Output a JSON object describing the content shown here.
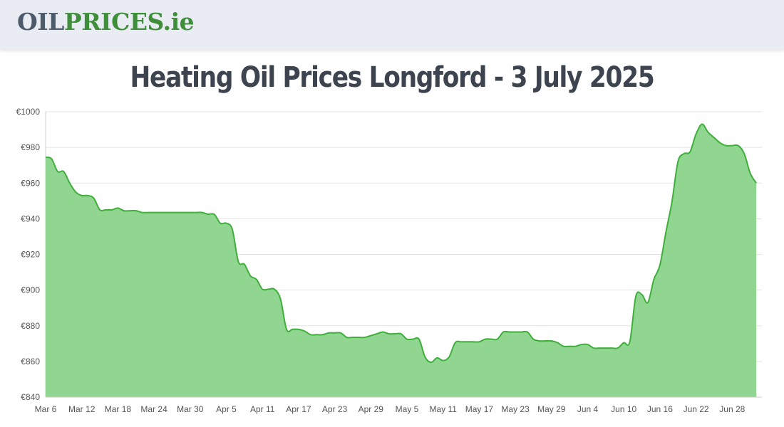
{
  "logo": {
    "part_a": "OIL",
    "part_b": "PRICES",
    "part_c": ".ie"
  },
  "title": "Heating Oil Prices Longford - 3 July 2025",
  "colors": {
    "line": "#3fae3b",
    "fill": "#90d690",
    "grid": "#e3e3e3",
    "header_bg": "#e9ecf3"
  },
  "chart_data": {
    "type": "area",
    "title": "Heating Oil Prices Longford - 3 July 2025",
    "xlabel": "",
    "ylabel": "",
    "ylim": [
      840,
      1000
    ],
    "y_ticks": [
      "€840",
      "€860",
      "€880",
      "€900",
      "€920",
      "€940",
      "€960",
      "€980",
      "€1000"
    ],
    "y_tick_values": [
      840,
      860,
      880,
      900,
      920,
      940,
      960,
      980,
      1000
    ],
    "x_ticks": [
      "Mar 6",
      "Mar 12",
      "Mar 18",
      "Mar 24",
      "Mar 30",
      "Apr 5",
      "Apr 11",
      "Apr 17",
      "Apr 23",
      "Apr 29",
      "May 5",
      "May 11",
      "May 17",
      "May 23",
      "May 29",
      "Jun 4",
      "Jun 10",
      "Jun 16",
      "Jun 22",
      "Jun 28"
    ],
    "x_start": "2025-03-06",
    "grid": true,
    "series": [
      {
        "points": [
          [
            "2025-03-06",
            974.5
          ],
          [
            "2025-03-07",
            973.5
          ],
          [
            "2025-03-08",
            966.5
          ],
          [
            "2025-03-09",
            966.5
          ],
          [
            "2025-03-10",
            960
          ],
          [
            "2025-03-11",
            955
          ],
          [
            "2025-03-12",
            953
          ],
          [
            "2025-03-13",
            953
          ],
          [
            "2025-03-14",
            951.5
          ],
          [
            "2025-03-15",
            945
          ],
          [
            "2025-03-16",
            945
          ],
          [
            "2025-03-17",
            945
          ],
          [
            "2025-03-18",
            946
          ],
          [
            "2025-03-19",
            944.5
          ],
          [
            "2025-03-20",
            944.5
          ],
          [
            "2025-03-21",
            944.5
          ],
          [
            "2025-03-22",
            943.5
          ],
          [
            "2025-03-23",
            943.5
          ],
          [
            "2025-03-24",
            943.5
          ],
          [
            "2025-03-25",
            943.5
          ],
          [
            "2025-03-26",
            943.5
          ],
          [
            "2025-03-27",
            943.5
          ],
          [
            "2025-03-28",
            943.5
          ],
          [
            "2025-03-29",
            943.5
          ],
          [
            "2025-03-30",
            943.5
          ],
          [
            "2025-03-31",
            943.5
          ],
          [
            "2025-04-01",
            943.5
          ],
          [
            "2025-04-02",
            942.5
          ],
          [
            "2025-04-03",
            942.5
          ],
          [
            "2025-04-04",
            937.5
          ],
          [
            "2025-04-05",
            937.5
          ],
          [
            "2025-04-06",
            934
          ],
          [
            "2025-04-07",
            916
          ],
          [
            "2025-04-08",
            914.5
          ],
          [
            "2025-04-09",
            908
          ],
          [
            "2025-04-10",
            906
          ],
          [
            "2025-04-11",
            900.5
          ],
          [
            "2025-04-12",
            900.5
          ],
          [
            "2025-04-13",
            900.5
          ],
          [
            "2025-04-14",
            895
          ],
          [
            "2025-04-15",
            878
          ],
          [
            "2025-04-16",
            878
          ],
          [
            "2025-04-17",
            878
          ],
          [
            "2025-04-18",
            877
          ],
          [
            "2025-04-19",
            875
          ],
          [
            "2025-04-20",
            875
          ],
          [
            "2025-04-21",
            875
          ],
          [
            "2025-04-22",
            876
          ],
          [
            "2025-04-23",
            876
          ],
          [
            "2025-04-24",
            876
          ],
          [
            "2025-04-25",
            873.5
          ],
          [
            "2025-04-26",
            873.5
          ],
          [
            "2025-04-27",
            873.5
          ],
          [
            "2025-04-28",
            873.5
          ],
          [
            "2025-04-29",
            874.5
          ],
          [
            "2025-04-30",
            875.5
          ],
          [
            "2025-05-01",
            876.5
          ],
          [
            "2025-05-02",
            875.5
          ],
          [
            "2025-05-03",
            875.5
          ],
          [
            "2025-05-04",
            875.5
          ],
          [
            "2025-05-05",
            872.5
          ],
          [
            "2025-05-06",
            872.5
          ],
          [
            "2025-05-07",
            872.5
          ],
          [
            "2025-05-08",
            862.5
          ],
          [
            "2025-05-09",
            859.5
          ],
          [
            "2025-05-10",
            862
          ],
          [
            "2025-05-11",
            860.5
          ],
          [
            "2025-05-12",
            862.5
          ],
          [
            "2025-05-13",
            870.5
          ],
          [
            "2025-05-14",
            871
          ],
          [
            "2025-05-15",
            871
          ],
          [
            "2025-05-16",
            871
          ],
          [
            "2025-05-17",
            871
          ],
          [
            "2025-05-18",
            872.5
          ],
          [
            "2025-05-19",
            872.5
          ],
          [
            "2025-05-20",
            872.5
          ],
          [
            "2025-05-21",
            876.5
          ],
          [
            "2025-05-22",
            876.5
          ],
          [
            "2025-05-23",
            876.5
          ],
          [
            "2025-05-24",
            876.5
          ],
          [
            "2025-05-25",
            876.5
          ],
          [
            "2025-05-26",
            872.5
          ],
          [
            "2025-05-27",
            871.5
          ],
          [
            "2025-05-28",
            871.5
          ],
          [
            "2025-05-29",
            871.5
          ],
          [
            "2025-05-30",
            870.5
          ],
          [
            "2025-05-31",
            868.5
          ],
          [
            "2025-06-01",
            868.5
          ],
          [
            "2025-06-02",
            868.5
          ],
          [
            "2025-06-03",
            869.5
          ],
          [
            "2025-06-04",
            869.5
          ],
          [
            "2025-06-05",
            867.5
          ],
          [
            "2025-06-06",
            867.5
          ],
          [
            "2025-06-07",
            867.5
          ],
          [
            "2025-06-08",
            867.5
          ],
          [
            "2025-06-09",
            867.5
          ],
          [
            "2025-06-10",
            870.5
          ],
          [
            "2025-06-11",
            871
          ],
          [
            "2025-06-12",
            896.5
          ],
          [
            "2025-06-13",
            897.5
          ],
          [
            "2025-06-14",
            893
          ],
          [
            "2025-06-15",
            906
          ],
          [
            "2025-06-16",
            914
          ],
          [
            "2025-06-17",
            932.5
          ],
          [
            "2025-06-18",
            949.5
          ],
          [
            "2025-06-19",
            972
          ],
          [
            "2025-06-20",
            976.5
          ],
          [
            "2025-06-21",
            977.5
          ],
          [
            "2025-06-22",
            987.5
          ],
          [
            "2025-06-23",
            993
          ],
          [
            "2025-06-24",
            988.5
          ],
          [
            "2025-06-25",
            985.5
          ],
          [
            "2025-06-26",
            982.5
          ],
          [
            "2025-06-27",
            981
          ],
          [
            "2025-06-28",
            981
          ],
          [
            "2025-06-29",
            981
          ],
          [
            "2025-06-30",
            976.5
          ],
          [
            "2025-07-01",
            965.5
          ],
          [
            "2025-07-02",
            960
          ]
        ]
      }
    ]
  }
}
